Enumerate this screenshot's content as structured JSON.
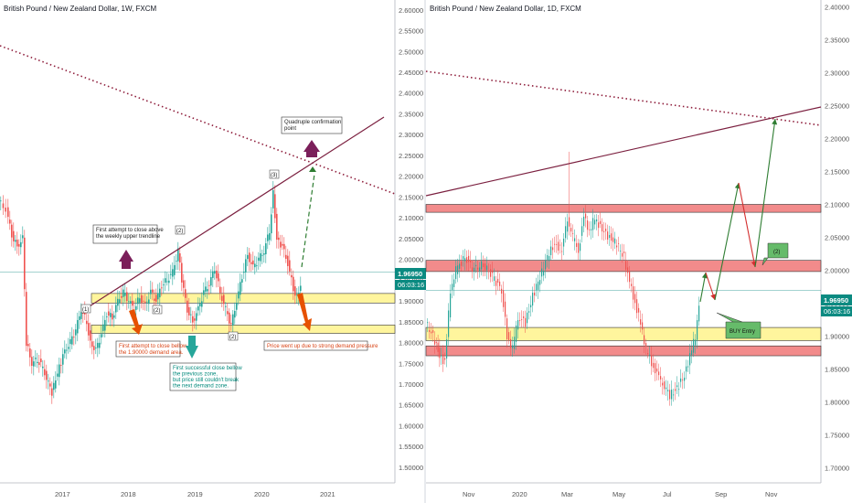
{
  "chart_data": [
    {
      "type": "candlestick",
      "title": "British Pound / New Zealand Dollar, 1W, FXCM",
      "y_ticks": [
        "2.60000",
        "2.55000",
        "2.50000",
        "2.45000",
        "2.40000",
        "2.35000",
        "2.30000",
        "2.25000",
        "2.20000",
        "2.15000",
        "2.10000",
        "2.05000",
        "2.00000",
        "1.95000",
        "1.90000",
        "1.85000",
        "1.80000",
        "1.75000",
        "1.70000",
        "1.65000",
        "1.60000",
        "1.55000",
        "1.50000"
      ],
      "ylim": [
        1.48,
        2.615
      ],
      "x_ticks": [
        "2017",
        "2018",
        "2019",
        "2020",
        "2021"
      ],
      "price_label": "1.96950",
      "timer_label": "06:03:16",
      "current_price": 1.9695,
      "demand_zones": [
        [
          1.895,
          1.918
        ],
        [
          1.822,
          1.842
        ]
      ],
      "annotations": {
        "quad": "Quadruple confirmation point",
        "first_attempt_above": "First attempt to close above the weekly upper trendline",
        "first_attempt_below": "First attempt to close below the 1.90000 demand area.",
        "first_success": "First successful close bellow the previous zone, but price still couldn't break the next demand zone.",
        "price_went_up": "Price went up due to strong demand pressure",
        "mark1": "(1)",
        "mark2": "(2)",
        "mark3": "(2)",
        "mark4": "(3)",
        "mark5": "(2)"
      }
    },
    {
      "type": "candlestick",
      "title": "British Pound / New Zealand Dollar, 1D, FXCM",
      "y_ticks": [
        "2.40000",
        "2.35000",
        "2.30000",
        "2.25000",
        "2.20000",
        "2.15000",
        "2.10000",
        "2.05000",
        "2.00000",
        "1.95000",
        "1.90000",
        "1.85000",
        "1.80000",
        "1.75000",
        "1.70000"
      ],
      "ylim": [
        1.688,
        2.405
      ],
      "x_ticks": [
        "Nov",
        "2020",
        "Mar",
        "May",
        "Jul",
        "Sep",
        "Nov"
      ],
      "price_label": "1.96950",
      "timer_label": "06:03:16",
      "current_price": 1.9695,
      "supply_zones": [
        [
          2.088,
          2.1
        ],
        [
          1.998,
          2.015
        ],
        [
          1.87,
          1.885
        ]
      ],
      "demand_zones": [
        [
          1.893,
          1.913
        ]
      ],
      "annotations": {
        "buy": "BUY Entry",
        "two": "(2)"
      }
    }
  ]
}
